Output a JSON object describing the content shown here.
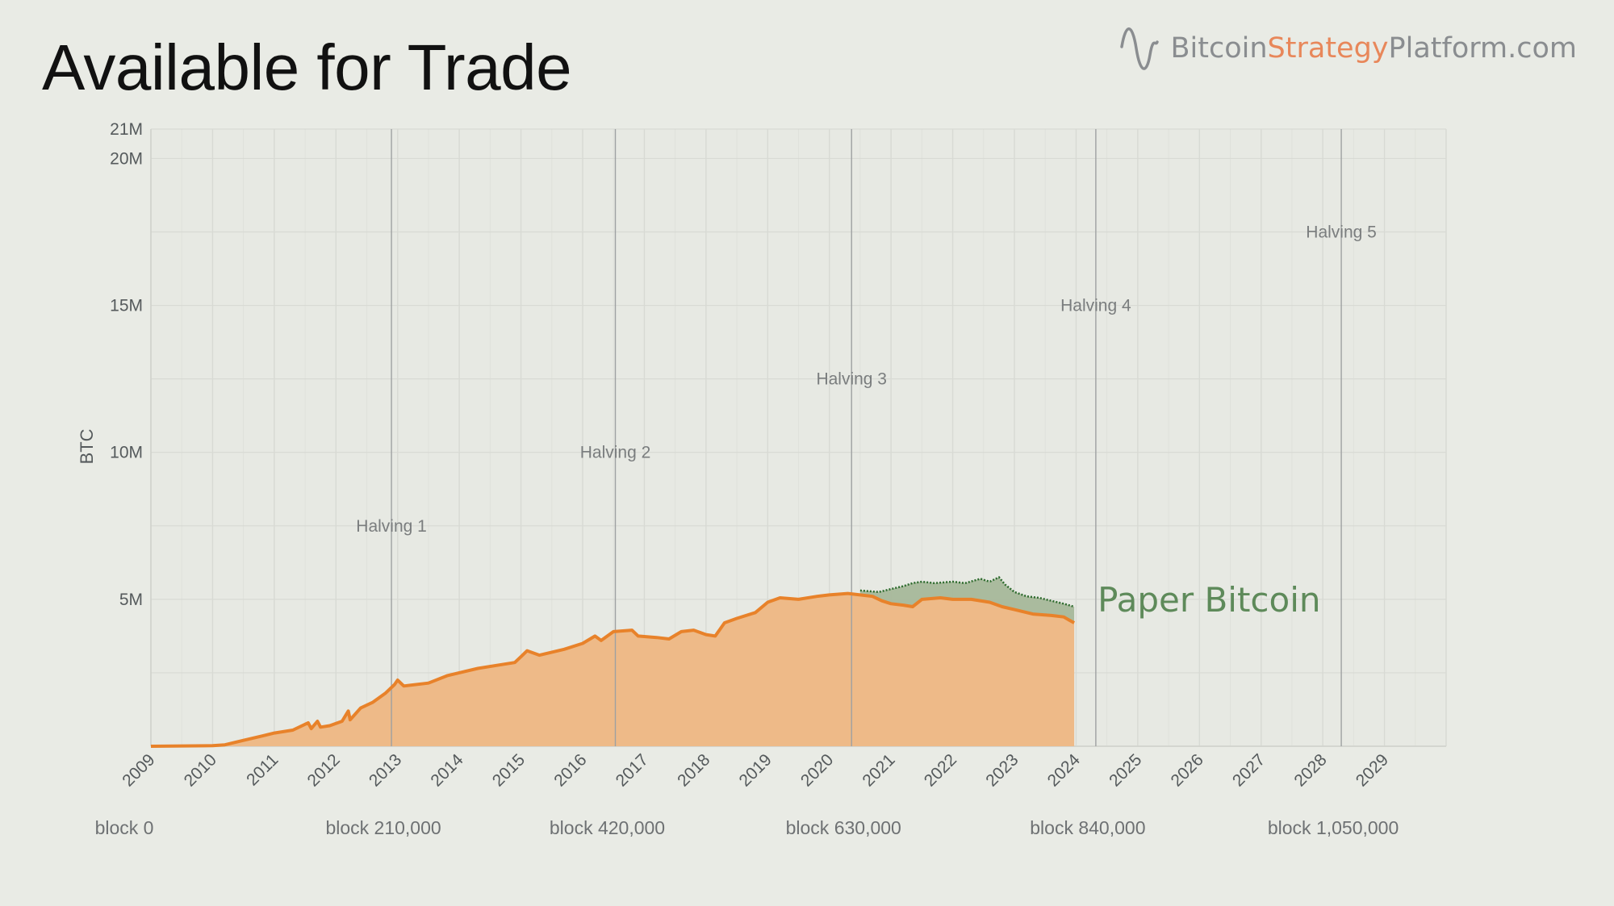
{
  "page": {
    "title": "Available for Trade"
  },
  "brand": {
    "part1": "Bitcoin",
    "part2": "Strategy",
    "part3": "Platform.com",
    "logo_icon": "sine-wave-icon",
    "accent_color": "#e8875a",
    "text_color": "#8a8d90"
  },
  "chart_data": {
    "type": "area",
    "ylabel": "BTC",
    "xlim": [
      2009.0,
      2030.0
    ],
    "ylim": [
      0,
      21
    ],
    "y_unit": "millions of BTC",
    "y_ticks": [
      {
        "value": 5,
        "label": "5M"
      },
      {
        "value": 10,
        "label": "10M"
      },
      {
        "value": 15,
        "label": "15M"
      },
      {
        "value": 20,
        "label": "20M"
      },
      {
        "value": 21,
        "label": "21M"
      }
    ],
    "x_ticks": [
      "2009",
      "2010",
      "2011",
      "2012",
      "2013",
      "2014",
      "2015",
      "2016",
      "2017",
      "2018",
      "2019",
      "2020",
      "2021",
      "2022",
      "2023",
      "2024",
      "2025",
      "2026",
      "2027",
      "2028",
      "2029"
    ],
    "grid": true,
    "halvings": [
      {
        "label": "Halving 1",
        "date": 2012.9,
        "label_y": 7.5,
        "block": "block 210,000"
      },
      {
        "label": "Halving 2",
        "date": 2016.53,
        "label_y": 10.0,
        "block": "block 420,000"
      },
      {
        "label": "Halving 3",
        "date": 2020.36,
        "label_y": 12.5,
        "block": "block 630,000"
      },
      {
        "label": "Halving 4",
        "date": 2024.32,
        "label_y": 15.0,
        "block": "block 840,000"
      },
      {
        "label": "Halving 5",
        "date": 2028.3,
        "label_y": 17.5,
        "block": "block 1,050,000"
      }
    ],
    "block_axis_start": {
      "label": "block 0",
      "date": 2009.0
    },
    "series": [
      {
        "color": "#e8822a",
        "fill": "#eeba88",
        "points": [
          [
            2009.0,
            0.0
          ],
          [
            2010.0,
            0.02
          ],
          [
            2010.2,
            0.05
          ],
          [
            2010.5,
            0.2
          ],
          [
            2010.8,
            0.35
          ],
          [
            2011.0,
            0.45
          ],
          [
            2011.3,
            0.55
          ],
          [
            2011.55,
            0.8
          ],
          [
            2011.6,
            0.6
          ],
          [
            2011.7,
            0.85
          ],
          [
            2011.75,
            0.65
          ],
          [
            2011.9,
            0.7
          ],
          [
            2012.1,
            0.85
          ],
          [
            2012.2,
            1.2
          ],
          [
            2012.23,
            0.9
          ],
          [
            2012.4,
            1.3
          ],
          [
            2012.6,
            1.5
          ],
          [
            2012.8,
            1.8
          ],
          [
            2012.95,
            2.1
          ],
          [
            2013.0,
            2.25
          ],
          [
            2013.1,
            2.05
          ],
          [
            2013.5,
            2.15
          ],
          [
            2013.8,
            2.4
          ],
          [
            2014.0,
            2.5
          ],
          [
            2014.3,
            2.65
          ],
          [
            2014.6,
            2.75
          ],
          [
            2014.9,
            2.85
          ],
          [
            2015.0,
            3.05
          ],
          [
            2015.1,
            3.25
          ],
          [
            2015.3,
            3.1
          ],
          [
            2015.5,
            3.2
          ],
          [
            2015.7,
            3.3
          ],
          [
            2016.0,
            3.5
          ],
          [
            2016.2,
            3.75
          ],
          [
            2016.3,
            3.6
          ],
          [
            2016.5,
            3.9
          ],
          [
            2016.8,
            3.95
          ],
          [
            2016.9,
            3.75
          ],
          [
            2017.2,
            3.7
          ],
          [
            2017.4,
            3.65
          ],
          [
            2017.6,
            3.9
          ],
          [
            2017.8,
            3.95
          ],
          [
            2018.0,
            3.8
          ],
          [
            2018.15,
            3.75
          ],
          [
            2018.3,
            4.2
          ],
          [
            2018.5,
            4.35
          ],
          [
            2018.8,
            4.55
          ],
          [
            2019.0,
            4.9
          ],
          [
            2019.2,
            5.05
          ],
          [
            2019.5,
            5.0
          ],
          [
            2019.8,
            5.1
          ],
          [
            2020.0,
            5.15
          ],
          [
            2020.3,
            5.2
          ],
          [
            2020.5,
            5.15
          ],
          [
            2020.7,
            5.1
          ],
          [
            2020.85,
            4.95
          ],
          [
            2021.0,
            4.85
          ],
          [
            2021.2,
            4.8
          ],
          [
            2021.35,
            4.75
          ],
          [
            2021.5,
            5.0
          ],
          [
            2021.8,
            5.05
          ],
          [
            2022.0,
            5.0
          ],
          [
            2022.3,
            5.0
          ],
          [
            2022.6,
            4.9
          ],
          [
            2022.8,
            4.75
          ],
          [
            2023.0,
            4.65
          ],
          [
            2023.3,
            4.5
          ],
          [
            2023.6,
            4.45
          ],
          [
            2023.8,
            4.4
          ],
          [
            2023.9,
            4.28
          ],
          [
            2023.97,
            4.2
          ]
        ]
      },
      {
        "name": "Paper Bitcoin",
        "color": "#2e6b2e",
        "fill": "#a6b89a",
        "label_color": "#5e8a5a",
        "points": [
          [
            2020.5,
            5.3
          ],
          [
            2020.8,
            5.25
          ],
          [
            2021.0,
            5.35
          ],
          [
            2021.2,
            5.45
          ],
          [
            2021.35,
            5.55
          ],
          [
            2021.5,
            5.6
          ],
          [
            2021.7,
            5.55
          ],
          [
            2022.0,
            5.6
          ],
          [
            2022.2,
            5.55
          ],
          [
            2022.45,
            5.7
          ],
          [
            2022.6,
            5.6
          ],
          [
            2022.75,
            5.75
          ],
          [
            2022.85,
            5.5
          ],
          [
            2023.0,
            5.25
          ],
          [
            2023.2,
            5.1
          ],
          [
            2023.4,
            5.05
          ],
          [
            2023.6,
            4.95
          ],
          [
            2023.8,
            4.85
          ],
          [
            2023.97,
            4.75
          ]
        ]
      }
    ]
  }
}
